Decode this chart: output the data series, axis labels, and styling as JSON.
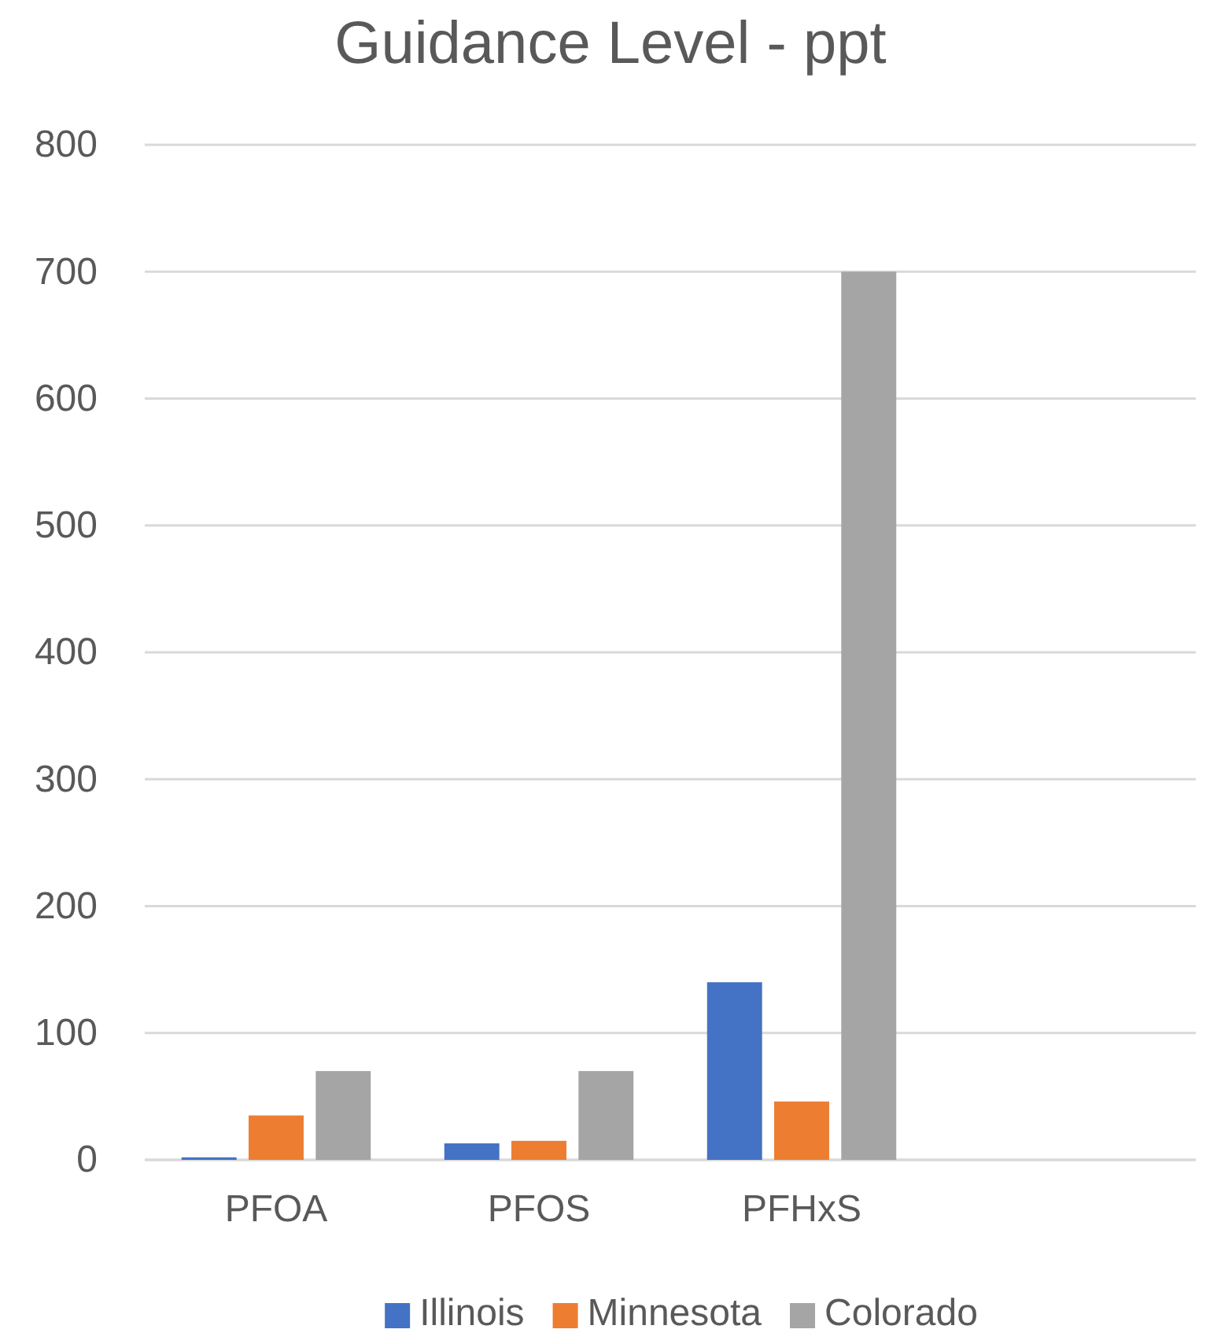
{
  "chart_data": {
    "type": "bar",
    "title": "Guidance Level - ppt",
    "categories": [
      "PFOA",
      "PFOS",
      "PFHxS",
      null
    ],
    "series": [
      {
        "name": "Illinois",
        "color": "#4472c4",
        "values": [
          2,
          13,
          140,
          null
        ]
      },
      {
        "name": "Minnesota",
        "color": "#ed7d31",
        "values": [
          35,
          15,
          46,
          null
        ]
      },
      {
        "name": "Colorado",
        "color": "#a5a5a5",
        "values": [
          70,
          70,
          700,
          null
        ]
      }
    ],
    "ylim": [
      0,
      800
    ],
    "yticks": [
      0,
      100,
      200,
      300,
      400,
      500,
      600,
      700,
      800
    ],
    "grid": "y",
    "legend": "bottom"
  }
}
